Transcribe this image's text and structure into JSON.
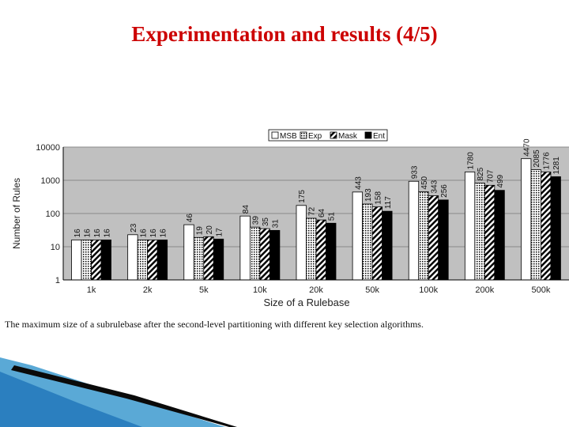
{
  "slide": {
    "title": "Experimentation and results (4/5)",
    "caption": "The maximum size of a subrulebase after the second-level partitioning with different key selection algorithms."
  },
  "colors": {
    "title": "#cc0000",
    "plot_background": "#c0c0c0",
    "accent_blue": "#1a8fd0"
  },
  "chart_data": {
    "type": "bar",
    "title": "",
    "xlabel": "Size of a Rulebase",
    "ylabel": "Number of Rules",
    "y_scale": "log",
    "ylim": [
      1,
      10000
    ],
    "y_ticks": [
      "1",
      "10",
      "100",
      "1000",
      "10000"
    ],
    "grid": true,
    "legend_position": "top-right",
    "categories": [
      "1k",
      "2k",
      "5k",
      "10k",
      "20k",
      "50k",
      "100k",
      "200k",
      "500k"
    ],
    "series": [
      {
        "name": "MSB",
        "pattern": "white",
        "values": [
          16,
          23,
          46,
          84,
          175,
          443,
          933,
          1780,
          4470
        ],
        "labels": [
          "16",
          "23",
          "46",
          "84",
          "175",
          "443",
          "933",
          "1780",
          "4470"
        ]
      },
      {
        "name": "Exp",
        "pattern": "dots",
        "values": [
          16,
          16,
          19,
          39,
          72,
          193,
          450,
          825,
          2085
        ],
        "labels": [
          "16",
          "16",
          "19",
          "39",
          "72",
          "193",
          "450",
          "825",
          "2085"
        ]
      },
      {
        "name": "Mask",
        "pattern": "hatch",
        "values": [
          16,
          16,
          20,
          35,
          64,
          158,
          343,
          707,
          1776
        ],
        "labels": [
          "16",
          "16",
          "20",
          "35",
          "64",
          "158",
          "343",
          "707",
          "1776"
        ]
      },
      {
        "name": "Ent",
        "pattern": "black",
        "values": [
          16,
          16,
          17,
          31,
          51,
          117,
          256,
          499,
          1281
        ],
        "labels": [
          "16",
          "16",
          "17",
          "31",
          "51",
          "117",
          "256",
          "499",
          "1281"
        ]
      }
    ]
  }
}
